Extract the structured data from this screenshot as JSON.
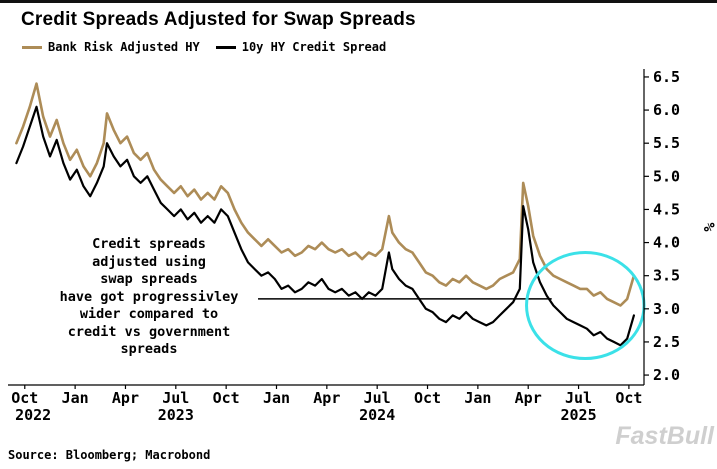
{
  "page": {
    "title": "Credit Spreads Adjusted for Swap Spreads",
    "source": "Source: Bloomberg; Macrobond",
    "watermark": "FastBull"
  },
  "legend": {
    "items": [
      {
        "label": "Bank Risk Adjusted HY",
        "color": "#ad8c57"
      },
      {
        "label": "10y HY Credit Spread",
        "color": "#000000"
      }
    ]
  },
  "chart_data": {
    "type": "line",
    "title": "Credit Spreads Adjusted for Swap Spreads",
    "xlabel": "",
    "ylabel": "%",
    "grid": false,
    "legend_position": "top-left",
    "x_unit": "months since Oct 2022",
    "xlim": [
      -0.5,
      37.4
    ],
    "ylim": [
      1.85,
      6.62
    ],
    "y_ticks": [
      6.5,
      6.0,
      5.5,
      5.0,
      4.5,
      4.0,
      3.5,
      3.0,
      2.5,
      2.0
    ],
    "x_ticks": [
      {
        "label": "Oct",
        "month": 0.5
      },
      {
        "label": "Jan",
        "month": 3.5
      },
      {
        "label": "Apr",
        "month": 6.5
      },
      {
        "label": "Jul",
        "month": 9.5
      },
      {
        "label": "Oct",
        "month": 12.5
      },
      {
        "label": "Jan",
        "month": 15.5
      },
      {
        "label": "Apr",
        "month": 18.5
      },
      {
        "label": "Jul",
        "month": 21.5
      },
      {
        "label": "Oct",
        "month": 24.5
      },
      {
        "label": "Jan",
        "month": 27.5
      },
      {
        "label": "Apr",
        "month": 30.5
      },
      {
        "label": "Jul",
        "month": 33.5
      },
      {
        "label": "Oct",
        "month": 36.5
      }
    ],
    "year_labels": [
      {
        "label": "2022",
        "month": 1.0
      },
      {
        "label": "2023",
        "month": 9.5
      },
      {
        "label": "2024",
        "month": 21.5
      },
      {
        "label": "2025",
        "month": 33.5
      }
    ],
    "x": [
      0,
      0.4,
      0.8,
      1.2,
      1.6,
      2,
      2.4,
      2.8,
      3.2,
      3.6,
      4,
      4.4,
      4.8,
      5.2,
      5.4,
      5.8,
      6.2,
      6.6,
      7,
      7.4,
      7.8,
      8.2,
      8.6,
      9,
      9.4,
      9.8,
      10.2,
      10.6,
      11,
      11.4,
      11.8,
      12.2,
      12.6,
      13,
      13.4,
      13.8,
      14.2,
      14.6,
      15,
      15.4,
      15.8,
      16.2,
      16.6,
      17,
      17.4,
      17.8,
      18.2,
      18.6,
      19,
      19.4,
      19.8,
      20.2,
      20.6,
      21,
      21.4,
      21.8,
      22.2,
      22.4,
      22.8,
      23.2,
      23.6,
      24,
      24.4,
      24.8,
      25.2,
      25.6,
      26,
      26.4,
      26.8,
      27.2,
      27.6,
      28,
      28.4,
      28.8,
      29.2,
      29.6,
      30,
      30.2,
      30.5,
      30.8,
      31.2,
      31.6,
      32,
      32.4,
      32.8,
      33.2,
      33.6,
      34,
      34.4,
      34.8,
      35.2,
      35.6,
      36,
      36.4,
      36.8
    ],
    "series": [
      {
        "name": "Bank Risk Adjusted HY",
        "color": "#ad8c57",
        "width": 2.6,
        "values": [
          5.5,
          5.75,
          6.05,
          6.4,
          5.9,
          5.6,
          5.85,
          5.5,
          5.25,
          5.4,
          5.15,
          5,
          5.2,
          5.5,
          5.95,
          5.7,
          5.5,
          5.6,
          5.35,
          5.25,
          5.35,
          5.1,
          4.95,
          4.85,
          4.75,
          4.85,
          4.7,
          4.8,
          4.65,
          4.75,
          4.65,
          4.85,
          4.75,
          4.5,
          4.3,
          4.15,
          4.05,
          3.95,
          4.05,
          3.95,
          3.85,
          3.9,
          3.8,
          3.85,
          3.95,
          3.9,
          4,
          3.9,
          3.85,
          3.9,
          3.8,
          3.85,
          3.75,
          3.85,
          3.8,
          3.9,
          4.4,
          4.15,
          4,
          3.9,
          3.85,
          3.7,
          3.55,
          3.5,
          3.4,
          3.35,
          3.45,
          3.4,
          3.5,
          3.4,
          3.35,
          3.3,
          3.35,
          3.45,
          3.5,
          3.55,
          3.75,
          4.9,
          4.55,
          4.1,
          3.8,
          3.6,
          3.5,
          3.45,
          3.4,
          3.35,
          3.3,
          3.3,
          3.2,
          3.25,
          3.15,
          3.1,
          3.05,
          3.15,
          3.5
        ]
      },
      {
        "name": "10y HY Credit Spread",
        "color": "#000000",
        "width": 2.2,
        "values": [
          5.2,
          5.45,
          5.75,
          6.05,
          5.6,
          5.3,
          5.55,
          5.2,
          4.95,
          5.1,
          4.85,
          4.7,
          4.9,
          5.15,
          5.5,
          5.3,
          5.15,
          5.25,
          5,
          4.9,
          5,
          4.8,
          4.6,
          4.5,
          4.4,
          4.5,
          4.35,
          4.45,
          4.3,
          4.4,
          4.3,
          4.5,
          4.4,
          4.15,
          3.9,
          3.7,
          3.6,
          3.5,
          3.55,
          3.45,
          3.3,
          3.35,
          3.25,
          3.3,
          3.4,
          3.35,
          3.45,
          3.3,
          3.25,
          3.3,
          3.2,
          3.25,
          3.15,
          3.25,
          3.2,
          3.3,
          3.85,
          3.6,
          3.45,
          3.35,
          3.3,
          3.15,
          3,
          2.95,
          2.85,
          2.8,
          2.9,
          2.85,
          2.95,
          2.85,
          2.8,
          2.75,
          2.8,
          2.9,
          3,
          3.1,
          3.3,
          4.55,
          4.2,
          3.7,
          3.4,
          3.2,
          3.05,
          2.95,
          2.85,
          2.8,
          2.75,
          2.7,
          2.6,
          2.65,
          2.55,
          2.5,
          2.45,
          2.55,
          2.9
        ]
      }
    ],
    "annotation": {
      "text": "Credit spreads\nadjusted using\nswap spreads\nhave got progressivley\nwider compared to\ncredit vs government\nspreads",
      "pointer_line": {
        "from_month": 14.4,
        "to_month": 31.9,
        "value": 3.15
      },
      "ellipse": {
        "center_month": 33.9,
        "center_value": 3.05,
        "rx_months": 3.5,
        "ry_value": 0.8,
        "color": "#3be1e8"
      }
    }
  }
}
